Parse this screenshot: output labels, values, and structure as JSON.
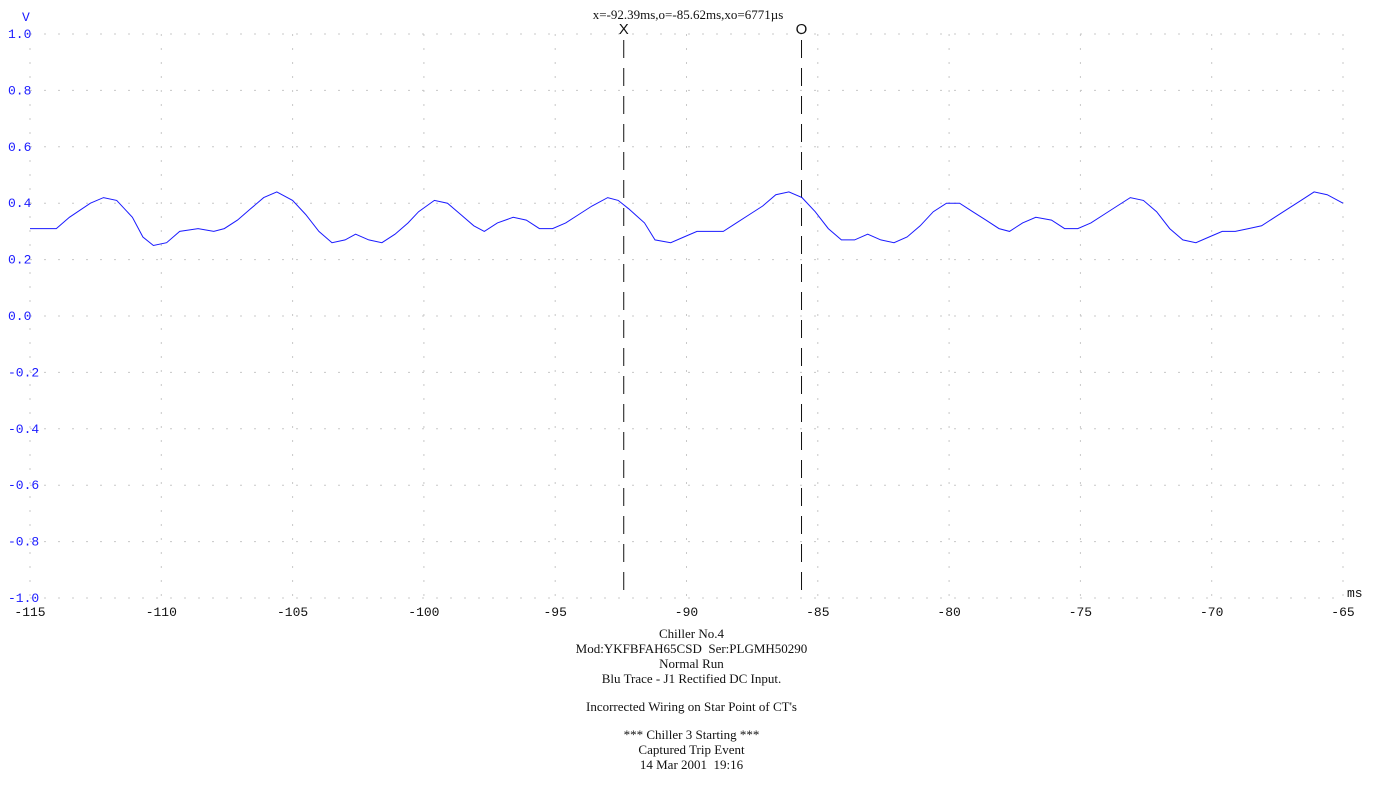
{
  "readout": "x=-92.39ms,o=-85.62ms,xo=6771µs",
  "markers": [
    {
      "label": "X",
      "x": -92.39
    },
    {
      "label": "O",
      "x": -85.62
    }
  ],
  "chart_data": {
    "type": "line",
    "ylabel": "V",
    "xlabel": "ms",
    "xlim": [
      -115,
      -65
    ],
    "ylim": [
      -1.0,
      1.0
    ],
    "yticks": [
      "1.0",
      "0.8",
      "0.6",
      "0.4",
      "0.2",
      "0.0",
      "-0.2",
      "-0.4",
      "-0.6",
      "-0.8",
      "-1.0"
    ],
    "xticks": [
      "-115",
      "-110",
      "-105",
      "-100",
      "-95",
      "-90",
      "-85",
      "-80",
      "-75",
      "-70",
      "-65"
    ],
    "grid": true,
    "series_color": "#1a1aff",
    "x": [
      -115.0,
      -114.0,
      -113.5,
      -112.7,
      -112.2,
      -111.7,
      -111.1,
      -110.7,
      -110.3,
      -109.8,
      -109.3,
      -108.6,
      -108.0,
      -107.6,
      -107.1,
      -106.6,
      -106.1,
      -105.6,
      -105.0,
      -104.5,
      -104.0,
      -103.5,
      -103.0,
      -102.6,
      -102.1,
      -101.6,
      -101.1,
      -100.6,
      -100.2,
      -99.6,
      -99.1,
      -98.6,
      -98.1,
      -97.7,
      -97.2,
      -96.6,
      -96.1,
      -95.6,
      -95.1,
      -94.6,
      -94.1,
      -93.6,
      -93.0,
      -92.6,
      -92.2,
      -91.6,
      -91.2,
      -90.6,
      -90.1,
      -89.6,
      -89.1,
      -88.6,
      -88.1,
      -87.6,
      -87.1,
      -86.6,
      -86.1,
      -85.6,
      -85.1,
      -84.6,
      -84.1,
      -83.6,
      -83.1,
      -82.6,
      -82.1,
      -81.6,
      -81.1,
      -80.6,
      -80.1,
      -79.6,
      -79.1,
      -78.6,
      -78.1,
      -77.7,
      -77.2,
      -76.7,
      -76.1,
      -75.6,
      -75.1,
      -74.6,
      -74.1,
      -73.6,
      -73.1,
      -72.6,
      -72.1,
      -71.6,
      -71.1,
      -70.6,
      -70.1,
      -69.6,
      -69.1,
      -68.6,
      -68.1,
      -67.6,
      -67.1,
      -66.6,
      -66.1,
      -65.6,
      -65.0
    ],
    "y": [
      0.31,
      0.31,
      0.35,
      0.4,
      0.42,
      0.41,
      0.35,
      0.28,
      0.25,
      0.26,
      0.3,
      0.31,
      0.3,
      0.31,
      0.34,
      0.38,
      0.42,
      0.44,
      0.41,
      0.36,
      0.3,
      0.26,
      0.27,
      0.29,
      0.27,
      0.26,
      0.29,
      0.33,
      0.37,
      0.41,
      0.4,
      0.36,
      0.32,
      0.3,
      0.33,
      0.35,
      0.34,
      0.31,
      0.31,
      0.33,
      0.36,
      0.39,
      0.42,
      0.41,
      0.38,
      0.33,
      0.27,
      0.26,
      0.28,
      0.3,
      0.3,
      0.3,
      0.33,
      0.36,
      0.39,
      0.43,
      0.44,
      0.42,
      0.37,
      0.31,
      0.27,
      0.27,
      0.29,
      0.27,
      0.26,
      0.28,
      0.32,
      0.37,
      0.4,
      0.4,
      0.37,
      0.34,
      0.31,
      0.3,
      0.33,
      0.35,
      0.34,
      0.31,
      0.31,
      0.33,
      0.36,
      0.39,
      0.42,
      0.41,
      0.37,
      0.31,
      0.27,
      0.26,
      0.28,
      0.3,
      0.3,
      0.31,
      0.32,
      0.35,
      0.38,
      0.41,
      0.44,
      0.43,
      0.4
    ]
  },
  "caption": {
    "title": "Chiller No.4",
    "model": "Mod:YKFBFAH65CSD  Ser:PLGMH50290",
    "mode": "Normal Run",
    "trace": "Blu Trace - J1 Rectified DC Input.",
    "note": "Incorrected Wiring on Star Point of CT's",
    "event1": "*** Chiller 3 Starting ***",
    "event2": "Captured Trip Event",
    "datetime": "14 Mar 2001  19:16"
  }
}
